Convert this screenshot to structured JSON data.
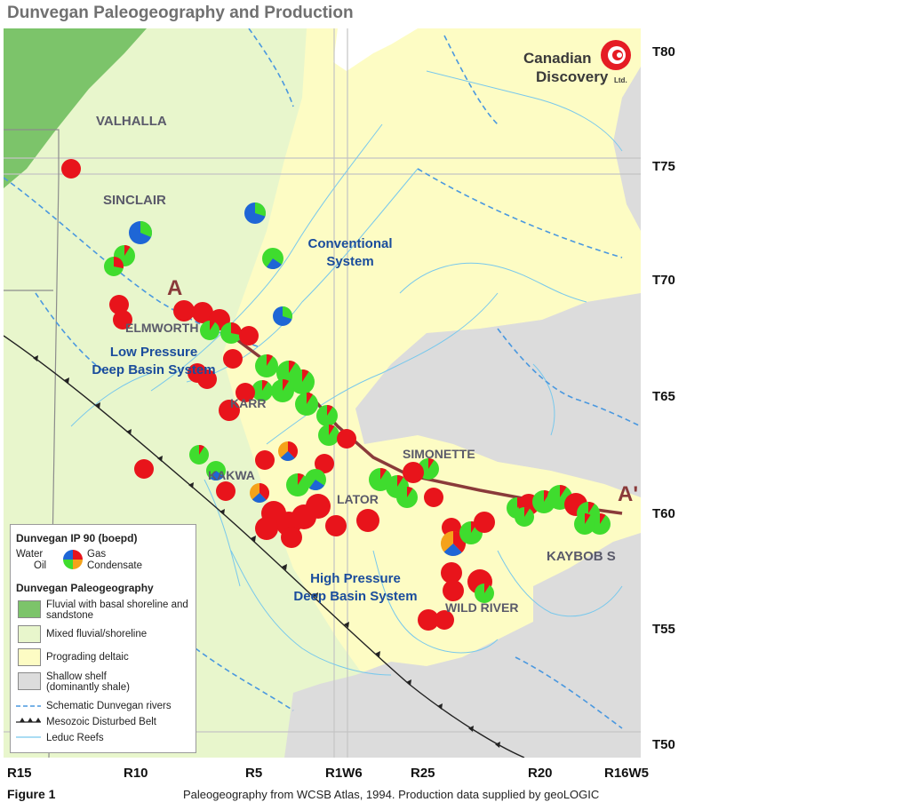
{
  "title": "Dunvegan Paleogeography and Production",
  "township_labels": [
    "T80",
    "T75",
    "T70",
    "T65",
    "T60",
    "T55",
    "T50"
  ],
  "range_labels": [
    "R15",
    "R10",
    "R5",
    "R1W6",
    "R25",
    "R20",
    "R16W5"
  ],
  "logo": {
    "line1": "Canadian",
    "line2": "Discovery",
    "suffix": "Ltd."
  },
  "field_names": [
    "VALHALLA",
    "SINCLAIR",
    "ELMWORTH",
    "KARR",
    "KAKWA",
    "LATOR",
    "SIMONETTE",
    "KAYBOB S",
    "WILD RIVER"
  ],
  "systems": {
    "conventional": [
      "Conventional",
      "System"
    ],
    "low_pressure": [
      "Low Pressure",
      "Deep Basin System"
    ],
    "high_pressure": [
      "High Pressure",
      "Deep Basin System"
    ]
  },
  "cross_section": {
    "start": "A",
    "end": "A'"
  },
  "legend": {
    "ip_title": "Dunvegan IP 90 (boepd)",
    "pie_water": "Water",
    "pie_gas": "Gas",
    "pie_oil": "Oil",
    "pie_condensate": "Condensate",
    "paleo_title": "Dunvegan Paleogeography",
    "items": [
      {
        "label": "Fluvial with basal shoreline and sandstone",
        "color": "#7cc46a"
      },
      {
        "label": "Mixed fluvial/shoreline",
        "color": "#e8f6cc"
      },
      {
        "label": "Prograding deltaic",
        "color": "#fdfcc4"
      },
      {
        "label": "Shallow shelf (dominantly shale)",
        "color": "#dcdcdc"
      }
    ],
    "rivers": "Schematic Dunvegan rivers",
    "belt": "Mesozoic Disturbed Belt",
    "reefs": "Leduc Reefs"
  },
  "colors": {
    "gas": "#e8141b",
    "oil": "#3fdc2e",
    "water": "#1e66d6",
    "condensate": "#f5a21a",
    "fields_text": "#5a5a6a",
    "systems_text": "#1a4c9c",
    "section_line": "#8a3a3a"
  },
  "footer": {
    "figure": "Figure 1",
    "source": "Paleogeography from WCSB Atlas, 1994. Production data supplied by geoLOGIC"
  }
}
